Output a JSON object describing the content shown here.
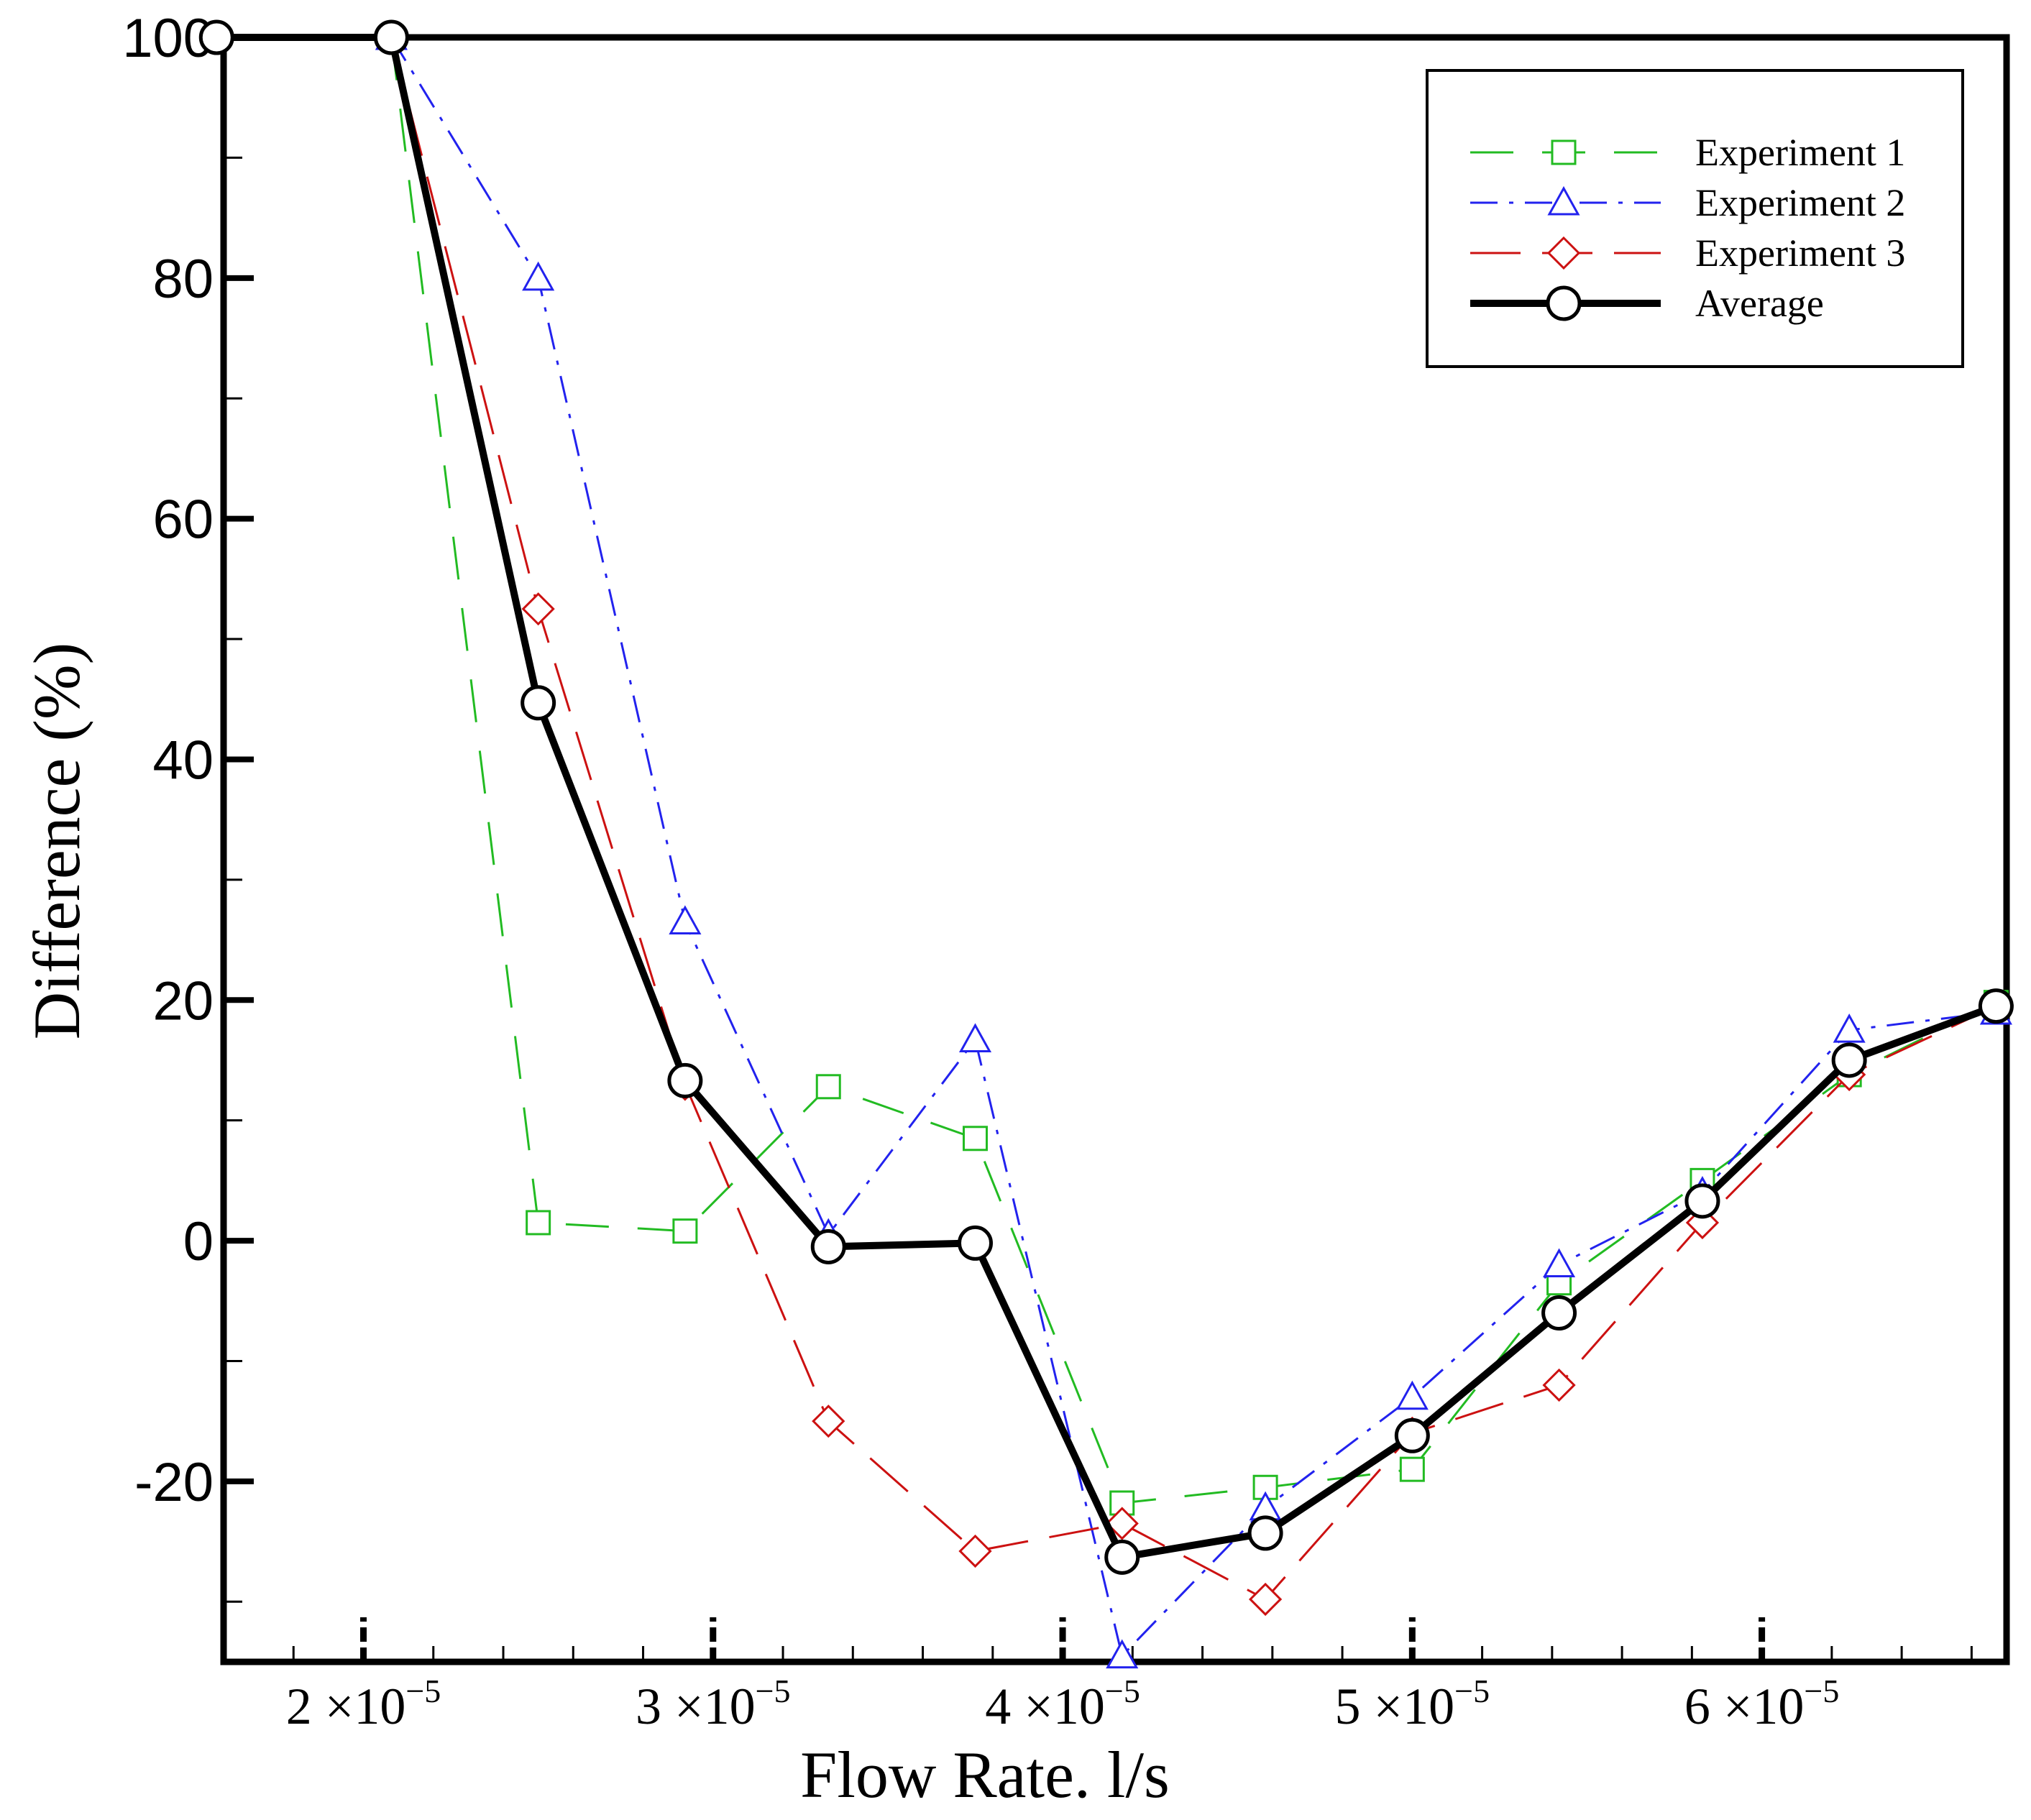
{
  "chart_data": {
    "type": "line",
    "title": "",
    "xlabel": "Flow Rate. l/s",
    "ylabel": "Difference (%)",
    "xlim": [
      1.6e-05,
      6.7e-05
    ],
    "ylim": [
      -35,
      100
    ],
    "x_ticks": [
      {
        "value": 2e-05,
        "mantissa": "2",
        "exponent": "−5"
      },
      {
        "value": 3e-05,
        "mantissa": "3",
        "exponent": "−5"
      },
      {
        "value": 4e-05,
        "mantissa": "4",
        "exponent": "−5"
      },
      {
        "value": 5e-05,
        "mantissa": "5",
        "exponent": "−5"
      },
      {
        "value": 6e-05,
        "mantissa": "6",
        "exponent": "−5"
      }
    ],
    "x_tick_times": "×10",
    "y_ticks": [
      100,
      80,
      60,
      40,
      20,
      0,
      -20
    ],
    "y_tick_labels": [
      "100",
      "80",
      "60",
      "40",
      "20",
      "0",
      "-20"
    ],
    "x": [
      1.58e-05,
      2.08e-05,
      2.5e-05,
      2.92e-05,
      3.33e-05,
      3.75e-05,
      4.17e-05,
      4.58e-05,
      5e-05,
      5.42e-05,
      5.83e-05,
      6.25e-05,
      6.67e-05
    ],
    "series": [
      {
        "name": "Experiment 1",
        "color": "#22bb22",
        "marker": "square",
        "dash": "long-dash",
        "x": [
          2.08e-05,
          2.5e-05,
          2.92e-05,
          3.33e-05,
          3.75e-05,
          4.17e-05,
          4.58e-05,
          5e-05,
          5.42e-05,
          5.83e-05,
          6.25e-05,
          6.67e-05
        ],
        "values": [
          100,
          1.5,
          0.8,
          12.8,
          8.5,
          -21.8,
          -20.5,
          -19,
          -3.5,
          5,
          13.8,
          19.8
        ]
      },
      {
        "name": "Experiment 2",
        "color": "#2222ee",
        "marker": "triangle",
        "dash": "dash-dot",
        "x": [
          2.08e-05,
          2.5e-05,
          2.92e-05,
          3.33e-05,
          3.75e-05,
          4.17e-05,
          4.58e-05,
          5e-05,
          5.42e-05,
          5.83e-05,
          6.25e-05,
          6.67e-05
        ],
        "values": [
          100,
          80,
          26.5,
          0.5,
          16.7,
          -34.5,
          -22.2,
          -13,
          -2,
          4,
          17.5,
          19
        ]
      },
      {
        "name": "Experiment 3",
        "color": "#cc1111",
        "marker": "diamond",
        "dash": "dash",
        "x": [
          2.08e-05,
          2.5e-05,
          2.92e-05,
          3.33e-05,
          3.75e-05,
          4.17e-05,
          4.58e-05,
          5e-05,
          5.42e-05,
          5.83e-05,
          6.25e-05,
          6.67e-05
        ],
        "values": [
          100,
          52.5,
          13,
          -15,
          -25.8,
          -23.5,
          -29.8,
          -16,
          -12,
          1.5,
          13.8,
          19.5
        ]
      },
      {
        "name": "Average",
        "color": "#000000",
        "marker": "circle",
        "dash": "solid",
        "x": [
          1.58e-05,
          2.08e-05,
          2.5e-05,
          2.92e-05,
          3.33e-05,
          3.75e-05,
          4.17e-05,
          4.58e-05,
          5e-05,
          5.42e-05,
          5.83e-05,
          6.25e-05,
          6.67e-05
        ],
        "values": [
          100,
          100,
          44.7,
          13.3,
          -0.5,
          -0.2,
          -26.3,
          -24.3,
          -16.2,
          -6,
          3.3,
          15,
          19.5
        ]
      }
    ],
    "legend": {
      "position": "top-right",
      "entries": [
        "Experiment 1",
        "Experiment 2",
        "Experiment 3",
        "Average"
      ]
    },
    "grid": false
  }
}
